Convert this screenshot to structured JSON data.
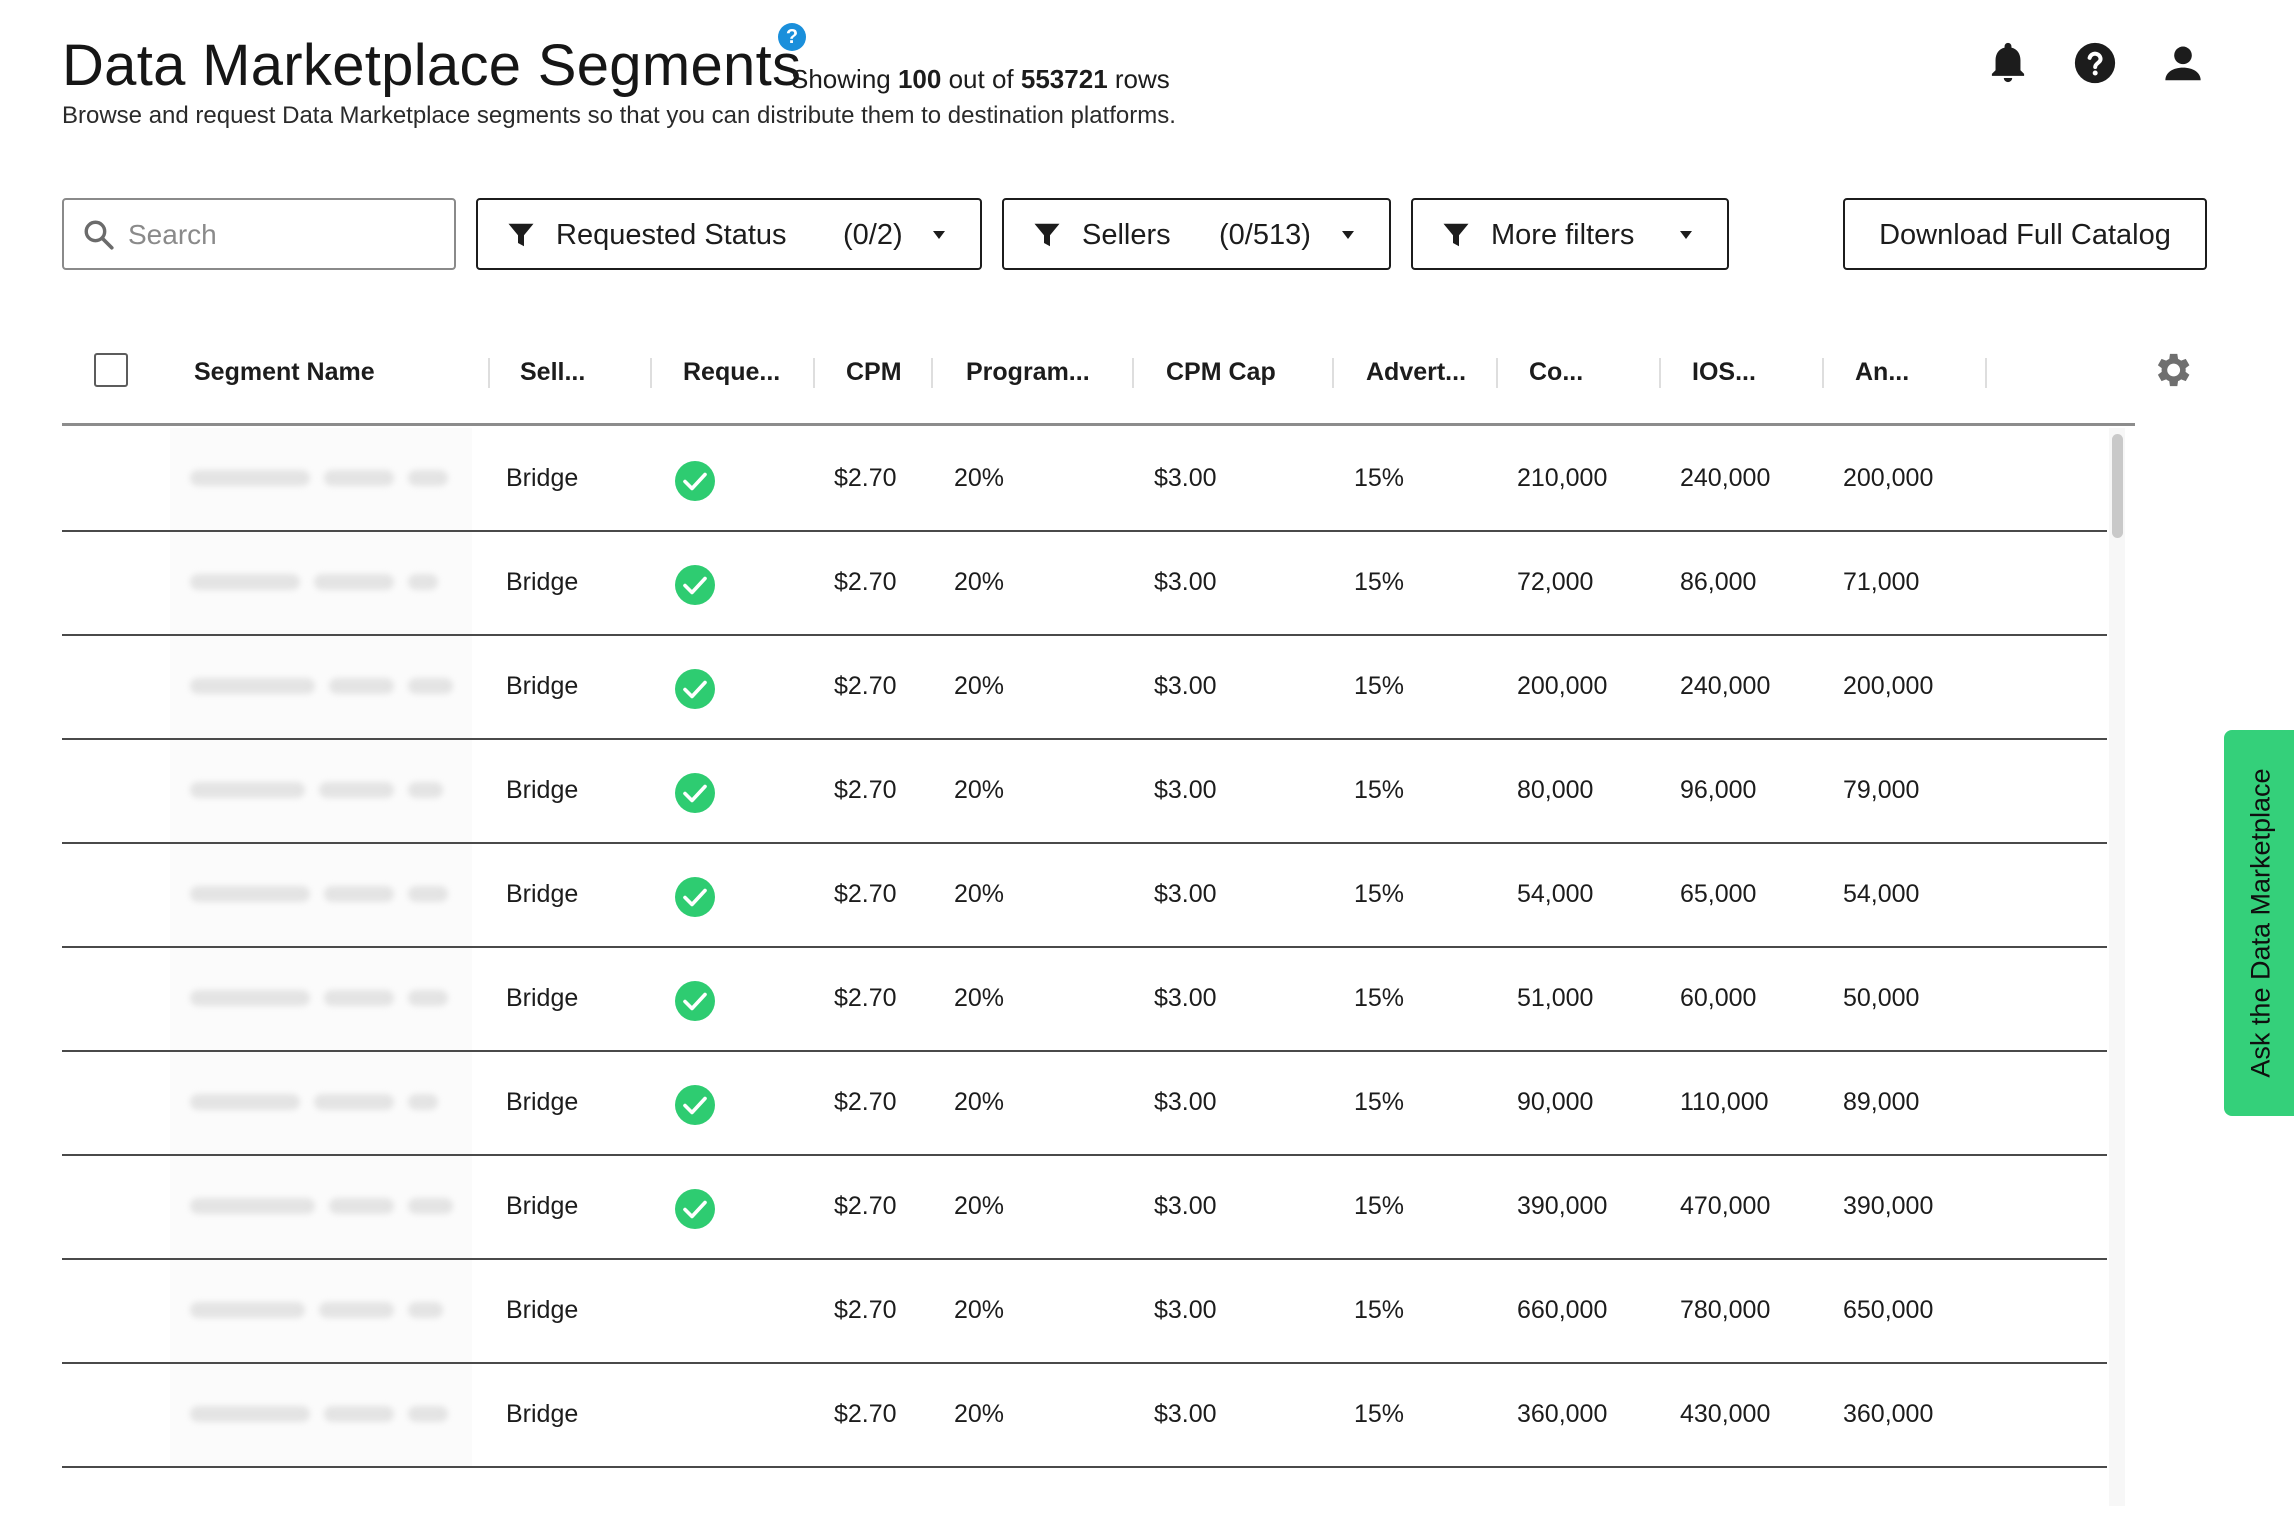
{
  "header": {
    "title": "Data Marketplace Segments",
    "info_badge": "?",
    "showing_prefix": "Showing",
    "showing_count": "100",
    "showing_middle": "out of",
    "total_rows": "553721",
    "showing_suffix": "rows",
    "subtitle": "Browse and request Data Marketplace segments so that you can distribute them to destination platforms."
  },
  "top_icons": [
    "bell-icon",
    "help-icon",
    "user-icon"
  ],
  "search": {
    "placeholder": "Search",
    "value": ""
  },
  "filters": {
    "requested_status": {
      "label": "Requested Status",
      "count": "(0/2)"
    },
    "sellers": {
      "label": "Sellers",
      "count": "(0/513)"
    },
    "more": {
      "label": "More filters"
    }
  },
  "download_label": "Download Full Catalog",
  "table": {
    "columns": [
      "Segment Name",
      "Sell...",
      "Reque...",
      "CPM",
      "Program...",
      "CPM Cap",
      "Advert...",
      "Co...",
      "IOS...",
      "An..."
    ],
    "rows": [
      {
        "seller": "Bridge",
        "requested": true,
        "cpm": "$2.70",
        "program": "20%",
        "cpm_cap": "$3.00",
        "advert": "15%",
        "co": "210,000",
        "ios": "240,000",
        "an": "200,000"
      },
      {
        "seller": "Bridge",
        "requested": true,
        "cpm": "$2.70",
        "program": "20%",
        "cpm_cap": "$3.00",
        "advert": "15%",
        "co": "72,000",
        "ios": "86,000",
        "an": "71,000"
      },
      {
        "seller": "Bridge",
        "requested": true,
        "cpm": "$2.70",
        "program": "20%",
        "cpm_cap": "$3.00",
        "advert": "15%",
        "co": "200,000",
        "ios": "240,000",
        "an": "200,000"
      },
      {
        "seller": "Bridge",
        "requested": true,
        "cpm": "$2.70",
        "program": "20%",
        "cpm_cap": "$3.00",
        "advert": "15%",
        "co": "80,000",
        "ios": "96,000",
        "an": "79,000"
      },
      {
        "seller": "Bridge",
        "requested": true,
        "cpm": "$2.70",
        "program": "20%",
        "cpm_cap": "$3.00",
        "advert": "15%",
        "co": "54,000",
        "ios": "65,000",
        "an": "54,000"
      },
      {
        "seller": "Bridge",
        "requested": true,
        "cpm": "$2.70",
        "program": "20%",
        "cpm_cap": "$3.00",
        "advert": "15%",
        "co": "51,000",
        "ios": "60,000",
        "an": "50,000"
      },
      {
        "seller": "Bridge",
        "requested": true,
        "cpm": "$2.70",
        "program": "20%",
        "cpm_cap": "$3.00",
        "advert": "15%",
        "co": "90,000",
        "ios": "110,000",
        "an": "89,000"
      },
      {
        "seller": "Bridge",
        "requested": true,
        "cpm": "$2.70",
        "program": "20%",
        "cpm_cap": "$3.00",
        "advert": "15%",
        "co": "390,000",
        "ios": "470,000",
        "an": "390,000"
      },
      {
        "seller": "Bridge",
        "requested": false,
        "cpm": "$2.70",
        "program": "20%",
        "cpm_cap": "$3.00",
        "advert": "15%",
        "co": "660,000",
        "ios": "780,000",
        "an": "650,000"
      },
      {
        "seller": "Bridge",
        "requested": false,
        "cpm": "$2.70",
        "program": "20%",
        "cpm_cap": "$3.00",
        "advert": "15%",
        "co": "360,000",
        "ios": "430,000",
        "an": "360,000"
      }
    ]
  },
  "side_tab_label": "Ask the Data Marketplace",
  "colors": {
    "accent_green": "#34d07a",
    "check_green": "#2ecc71",
    "info_blue": "#1a8fdb",
    "text": "#1c1c1c"
  }
}
